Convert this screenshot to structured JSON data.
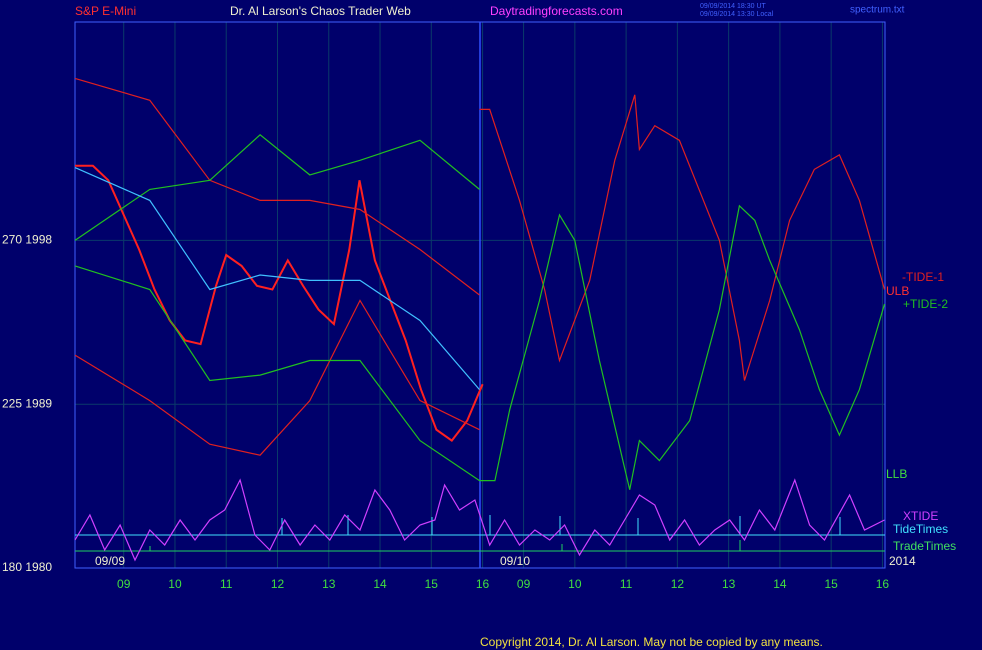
{
  "chart_data": {
    "type": "line",
    "instrument": "S&P E-Mini",
    "title": "Dr. Al Larson's Chaos Trader Web",
    "site": "Daytradingforecasts.com",
    "time_ut": "09/09/2014 18:30 UT",
    "time_local": "09/09/2014 13:30 Local",
    "file": "spectrum.txt",
    "date_labels": [
      "09/09",
      "09/10",
      "2014"
    ],
    "annotations": [
      "ULB",
      "LLB",
      "TideTimes",
      "TradeTimes"
    ],
    "copyright": "Copyright 2014, Dr. Al Larson. May not be copied by any means.",
    "xlim": [
      8.05,
      23.85
    ],
    "xticks": [
      {
        "value": 9,
        "label": "09"
      },
      10,
      11,
      12,
      13,
      14,
      15,
      16,
      {
        "value": 16.8,
        "label": "09"
      },
      {
        "value": 17.8,
        "label": "10"
      },
      {
        "value": 18.8,
        "label": "11"
      },
      {
        "value": 19.8,
        "label": "12"
      },
      {
        "value": 20.8,
        "label": "13"
      },
      {
        "value": 21.8,
        "label": "14"
      },
      {
        "value": 22.8,
        "label": "15"
      },
      {
        "value": 23.8,
        "label": "16"
      }
    ],
    "ylim": [
      1980,
      2010
    ],
    "yticks": [
      {
        "value": 1980,
        "label": "180  1980"
      },
      {
        "value": 1989,
        "label": "225  1989"
      },
      {
        "value": 1998,
        "label": "270  1998"
      }
    ],
    "y2lim": [
      0,
      10
    ],
    "series": [
      {
        "color": "#ff2020",
        "x": [
          8.05,
          8.4,
          8.7,
          9.0,
          9.3,
          9.6,
          9.9,
          10.2,
          10.5,
          10.8,
          11.0,
          11.3,
          11.6,
          11.9,
          12.2,
          12.5,
          12.8,
          13.1,
          13.4,
          13.6,
          13.9,
          14.2,
          14.5,
          14.8,
          15.1,
          15.4,
          15.7,
          16.0
        ],
        "values": [
          2002.1,
          2002.1,
          2001.3,
          1999.4,
          1997.5,
          1995.3,
          1993.6,
          1992.5,
          1992.3,
          1995.5,
          1997.2,
          1996.6,
          1995.5,
          1995.3,
          1996.9,
          1995.5,
          1994.2,
          1993.4,
          1997.5,
          2001.3,
          1996.9,
          1994.7,
          1992.5,
          1989.8,
          1987.6,
          1987.0,
          1988.1,
          1990.1
        ]
      },
      {
        "color": "#e02020",
        "x": [
          8.05,
          9.51,
          10.68,
          11.66,
          12.63,
          13.61,
          14.78,
          15.94
        ],
        "values": [
          2006.9,
          2005.7,
          2001.3,
          2000.2,
          2000.2,
          1999.7,
          1997.5,
          1995.0
        ]
      },
      {
        "color": "#e02020",
        "x": [
          8.05,
          9.51,
          10.68,
          11.66,
          12.63,
          13.61,
          14.78,
          15.94
        ],
        "values": [
          1991.7,
          1989.2,
          1986.8,
          1986.2,
          1989.2,
          1994.7,
          1989.2,
          1987.6
        ]
      },
      {
        "color": "#20c020",
        "x": [
          8.05,
          9.51,
          10.68,
          11.66,
          12.63,
          13.61,
          14.78,
          15.94
        ],
        "values": [
          1998.0,
          2000.8,
          2001.3,
          2003.8,
          2001.6,
          2002.4,
          2003.5,
          2000.8
        ]
      },
      {
        "color": "#20c020",
        "x": [
          8.05,
          9.51,
          10.68,
          11.66,
          12.63,
          13.61,
          14.78,
          15.94
        ],
        "values": [
          1996.6,
          1995.3,
          1990.3,
          1990.6,
          1991.4,
          1991.4,
          1987.0,
          1984.8
        ]
      },
      {
        "color": "#40c0ff",
        "x": [
          8.05,
          9.51,
          10.68,
          11.66,
          12.63,
          13.61,
          14.78,
          15.94
        ],
        "values": [
          2002.0,
          2000.2,
          1995.3,
          1996.1,
          1995.8,
          1995.8,
          1993.6,
          1989.8
        ]
      },
      {
        "name": "-TIDE-1",
        "color": "#e02020",
        "x": [
          15.94,
          16.14,
          16.72,
          17.21,
          17.5,
          18.09,
          18.58,
          18.97,
          19.06,
          19.36,
          19.84,
          20.62,
          21.01,
          21.11,
          21.6,
          21.99,
          22.47,
          22.96,
          23.35,
          23.84
        ],
        "values": [
          2005.2,
          2005.2,
          2000.2,
          1995.3,
          1991.4,
          1995.8,
          2002.4,
          2006.0,
          2003.0,
          2004.3,
          2003.5,
          1998.0,
          1992.5,
          1990.3,
          1994.7,
          1999.1,
          2001.9,
          2002.7,
          2000.2,
          1995.3
        ]
      },
      {
        "name": "+TIDE-2",
        "color": "#20c020",
        "x": [
          15.94,
          16.24,
          16.53,
          17.11,
          17.5,
          17.8,
          18.28,
          18.87,
          19.06,
          19.45,
          20.04,
          20.62,
          21.01,
          21.31,
          21.6,
          22.18,
          22.57,
          22.96,
          23.35,
          23.84
        ],
        "values": [
          1984.8,
          1984.8,
          1988.7,
          1994.7,
          1999.4,
          1998.0,
          1991.4,
          1984.3,
          1987.0,
          1985.9,
          1988.1,
          1994.2,
          1999.9,
          1999.1,
          1996.9,
          1993.1,
          1989.8,
          1987.3,
          1989.8,
          1994.5
        ]
      },
      {
        "name": "XTIDE",
        "color": "#d040ff",
        "axis": "y2",
        "x": [
          8.05,
          8.34,
          8.63,
          8.93,
          9.22,
          9.51,
          9.8,
          10.1,
          10.39,
          10.68,
          10.97,
          11.27,
          11.56,
          11.85,
          12.14,
          12.44,
          12.73,
          13.02,
          13.31,
          13.61,
          13.9,
          14.19,
          14.48,
          14.78,
          15.07,
          15.26,
          15.55,
          15.85,
          16.14,
          16.43,
          16.72,
          17.02,
          17.31,
          17.6,
          17.89,
          18.19,
          18.48,
          18.77,
          19.06,
          19.36,
          19.65,
          19.94,
          20.23,
          20.53,
          20.82,
          21.11,
          21.4,
          21.7,
          22.09,
          22.38,
          22.67,
          23.16,
          23.45,
          23.84
        ],
        "values": [
          2.8,
          5.3,
          1.8,
          4.3,
          0.8,
          3.8,
          2.3,
          4.8,
          2.8,
          4.8,
          5.8,
          8.8,
          3.3,
          1.8,
          4.8,
          2.3,
          4.3,
          2.8,
          5.3,
          3.8,
          7.8,
          5.8,
          2.8,
          4.3,
          4.8,
          8.3,
          5.8,
          6.8,
          2.3,
          4.8,
          2.3,
          3.8,
          2.8,
          4.3,
          1.3,
          3.8,
          2.3,
          4.8,
          7.3,
          6.3,
          2.8,
          4.8,
          2.3,
          3.8,
          4.8,
          2.8,
          5.8,
          3.8,
          8.8,
          4.3,
          2.8,
          7.3,
          3.8,
          4.8
        ]
      }
    ]
  }
}
